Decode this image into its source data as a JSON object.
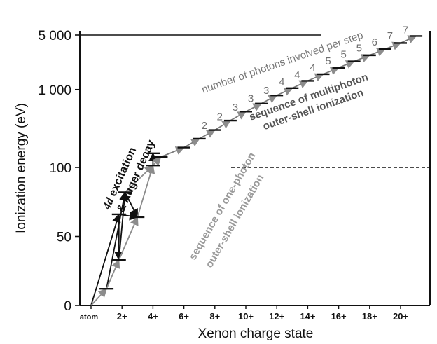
{
  "chart_data": {
    "type": "line",
    "title": "",
    "xlabel": "Xenon charge state",
    "ylabel": "Ionization energy (eV)",
    "x_ticks": [
      "atom",
      "2+",
      "4+",
      "6+",
      "8+",
      "10+",
      "12+",
      "14+",
      "16+",
      "18+",
      "20+"
    ],
    "y_ticks": [
      "0",
      "50",
      "100",
      "1 000",
      "5 000"
    ],
    "y_scale": "linear below 100 eV, logarithmic above 100 eV (broken axis)",
    "xlim": [
      -0.3,
      21.3
    ],
    "ylim": [
      0,
      5300
    ],
    "grid": false,
    "ionization_levels": [
      {
        "charge": 1,
        "energy": 12.1
      },
      {
        "charge": 1.8,
        "energy": 33
      },
      {
        "charge": 1.8,
        "energy": 66
      },
      {
        "charge": 2.2,
        "energy": 82
      },
      {
        "charge": 3.0,
        "energy": 64
      },
      {
        "charge": 4.0,
        "energy": 106
      },
      {
        "charge": 4.0,
        "energy": 152
      },
      {
        "charge": 4.5,
        "energy": 136
      },
      {
        "charge": 6,
        "energy": 180
      },
      {
        "charge": 7,
        "energy": 234
      },
      {
        "charge": 8,
        "energy": 302
      },
      {
        "charge": 9,
        "energy": 400
      },
      {
        "charge": 10,
        "energy": 520
      },
      {
        "charge": 11,
        "energy": 660
      },
      {
        "charge": 12,
        "energy": 840
      },
      {
        "charge": 13,
        "energy": 1040
      },
      {
        "charge": 14,
        "energy": 1290
      },
      {
        "charge": 15,
        "energy": 1570
      },
      {
        "charge": 16,
        "energy": 1900
      },
      {
        "charge": 17,
        "energy": 2300
      },
      {
        "charge": 18,
        "energy": 2750
      },
      {
        "charge": 19,
        "energy": 3300
      },
      {
        "charge": 20,
        "energy": 3950
      },
      {
        "charge": 21,
        "energy": 4850
      }
    ],
    "photons_per_step": [
      {
        "charge": 7.5,
        "photons": "2"
      },
      {
        "charge": 8.5,
        "photons": "2"
      },
      {
        "charge": 9.5,
        "photons": "3"
      },
      {
        "charge": 10.5,
        "photons": "3"
      },
      {
        "charge": 11.5,
        "photons": "3"
      },
      {
        "charge": 12.5,
        "photons": "4"
      },
      {
        "charge": 13.5,
        "photons": "4"
      },
      {
        "charge": 14.5,
        "photons": "4"
      },
      {
        "charge": 15.5,
        "photons": "5"
      },
      {
        "charge": 16.5,
        "photons": "5"
      },
      {
        "charge": 17.5,
        "photons": "5"
      },
      {
        "charge": 18.5,
        "photons": "6"
      },
      {
        "charge": 19.5,
        "photons": "7"
      },
      {
        "charge": 20.5,
        "photons": "7"
      }
    ],
    "reference_lines": [
      {
        "energy": 5000,
        "style": "solid"
      },
      {
        "energy": 100,
        "style": "dashed"
      }
    ],
    "annotations": {
      "photons_label": "number of photons involved per step",
      "multiphoton_line1": "sequence of multiphoton",
      "multiphoton_line2": "outer-shell ionization",
      "onephoton_line1": "sequence of one-photon",
      "onephoton_line2": "outer-shell ionization",
      "auger_4d": "4d",
      "auger_line1_rest": " excitation",
      "auger_line2": "& Auger decay"
    },
    "colors": {
      "axis": "#111111",
      "one_photon_arrows": "#8c8c8c",
      "multiphoton_arrows": "#7a7a7a",
      "auger_arrows": "#111111",
      "photon_count_text": "#6e6e6e",
      "multiphoton_text": "#555555",
      "onephoton_text": "#9a9a9a"
    }
  }
}
